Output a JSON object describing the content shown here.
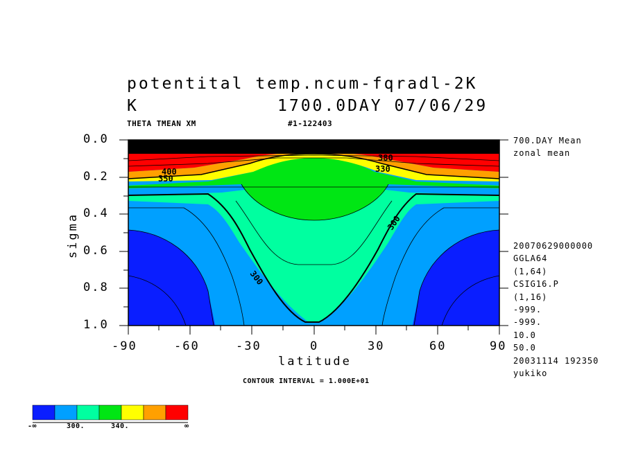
{
  "title": {
    "line1": "potentital temp.ncum-fqradl-2K",
    "line2_left": "K",
    "line2_right": "1700.0DAY 07/06/29"
  },
  "subtitle": {
    "left": "THETA TMEAN XM",
    "right": "#1-122403"
  },
  "side_info": {
    "top": [
      "700.DAY Mean",
      "zonal mean"
    ],
    "bottom": [
      "20070629000000",
      "GGLA64",
      "(1,64)",
      "CSIG16.P",
      "(1,16)",
      "-999.",
      "-999.",
      "10.0",
      "50.0",
      "20031114 192350",
      "yukiko"
    ]
  },
  "contour_interval": "CONTOUR INTERVAL = 1.000E+01",
  "colorbar": {
    "colors": [
      "#0a1eff",
      "#00a0ff",
      "#00ffa0",
      "#00e614",
      "#ffff00",
      "#ffa000",
      "#ff0000"
    ],
    "labels": [
      "-∞",
      "300.",
      "340.",
      "∞"
    ]
  },
  "chart_data": {
    "type": "contour",
    "xlabel": "latitude",
    "ylabel": "sigma",
    "xlim": [
      -90,
      90
    ],
    "ylim": [
      1.0,
      0.0
    ],
    "x_ticks": [
      "-90",
      "-60",
      "-30",
      "0",
      "30",
      "60",
      "90"
    ],
    "y_ticks": [
      "0.0",
      "0.2",
      "0.4",
      "0.6",
      "0.8",
      "1.0"
    ],
    "levels": [
      290,
      300,
      310,
      320,
      330,
      340,
      350,
      360
    ],
    "contour_labels": [
      "300",
      "300",
      "330",
      "400",
      "350",
      "380"
    ],
    "description": "Zonal-mean potential temperature (K); warm layers aloft, cold high-latitude surface regions"
  }
}
